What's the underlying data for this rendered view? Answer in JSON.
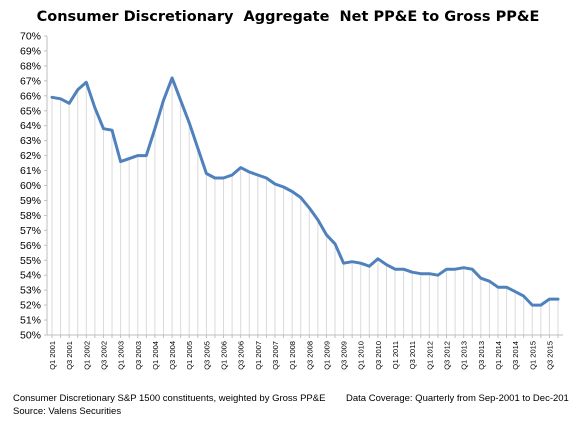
{
  "chart_data": {
    "type": "area",
    "title": "Consumer Discretionary  Aggregate  Net PP&E to Gross PP&E",
    "xlabel": "",
    "ylabel": "",
    "ylim": [
      50,
      70
    ],
    "y_ticks": [
      "50%",
      "51%",
      "52%",
      "53%",
      "54%",
      "55%",
      "56%",
      "57%",
      "58%",
      "59%",
      "60%",
      "61%",
      "62%",
      "63%",
      "64%",
      "65%",
      "66%",
      "67%",
      "68%",
      "69%",
      "70%"
    ],
    "x_tick_labels": [
      "Q1 2001",
      "Q3 2001",
      "Q1 2002",
      "Q3 2002",
      "Q1 2003",
      "Q3 2003",
      "Q1 2004",
      "Q3 2004",
      "Q1 2005",
      "Q3 2005",
      "Q1 2006",
      "Q3 2006",
      "Q1 2007",
      "Q3 2007",
      "Q1 2008",
      "Q3 2008",
      "Q1 2009",
      "Q3 2009",
      "Q1 2010",
      "Q3 2010",
      "Q1 2011",
      "Q3 2011",
      "Q1 2012",
      "Q3 2012",
      "Q1 2013",
      "Q3 2013",
      "Q1 2014",
      "Q3 2014",
      "Q1 2015",
      "Q3 2015"
    ],
    "grid": false,
    "legend": "none",
    "line_color": "#4f81bd",
    "fill": "light gray vertical hatching",
    "values": [
      65.9,
      65.8,
      65.5,
      66.4,
      66.9,
      65.2,
      63.8,
      63.7,
      61.6,
      61.8,
      62.0,
      62.0,
      63.8,
      65.7,
      67.2,
      65.7,
      64.2,
      62.5,
      60.8,
      60.5,
      60.5,
      60.7,
      61.2,
      60.9,
      60.7,
      60.5,
      60.1,
      59.9,
      59.6,
      59.2,
      58.5,
      57.7,
      56.7,
      56.1,
      54.8,
      54.9,
      54.8,
      54.6,
      55.1,
      54.7,
      54.4,
      54.4,
      54.2,
      54.1,
      54.1,
      54.0,
      54.4,
      54.4,
      54.5,
      54.4,
      53.8,
      53.6,
      53.2,
      53.2,
      52.9,
      52.6,
      52.0,
      52.0,
      52.4,
      52.4
    ]
  },
  "footer": {
    "constituents": "Consumer Discretionary S&P 1500 constituents, weighted by Gross PP&E",
    "source": "Source: Valens Securities",
    "coverage": "Data Coverage: Quarterly from Sep-2001 to Dec-201"
  }
}
